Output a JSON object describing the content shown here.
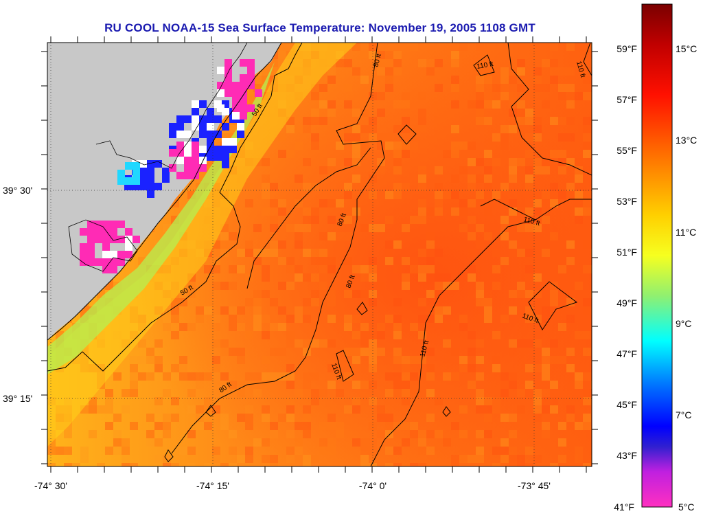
{
  "title": "RU COOL  NOAA-15  Sea Surface Temperature:  November 19, 2005 1108 GMT",
  "lon_labels": [
    "-74° 30'",
    "-74° 15'",
    "-74° 0'",
    "-73° 45'"
  ],
  "lat_labels": [
    "39° 30'",
    "39° 15'"
  ],
  "isobath_labels": [
    "50 ft",
    "50 ft",
    "80 ft",
    "80 ft",
    "80 ft",
    "80 ft",
    "110 ft",
    "110 ft",
    "110 ft",
    "110 ft",
    "110 ft",
    "110 ft"
  ],
  "colorbar": {
    "fahrenheit_labels": [
      "59°F",
      "57°F",
      "55°F",
      "53°F",
      "51°F",
      "49°F",
      "47°F",
      "45°F",
      "43°F",
      "41°F"
    ],
    "celsius_labels": [
      "15°C",
      "13°C",
      "11°C",
      "9°C",
      "7°C",
      "5°C"
    ],
    "range_c": [
      5,
      16
    ],
    "colors": {
      "land": "#c8c8c8",
      "warm_sea": "#ff6a10",
      "coast_cold": "#1a22ff",
      "nearshore_magenta": "#ff2bb5"
    }
  }
}
